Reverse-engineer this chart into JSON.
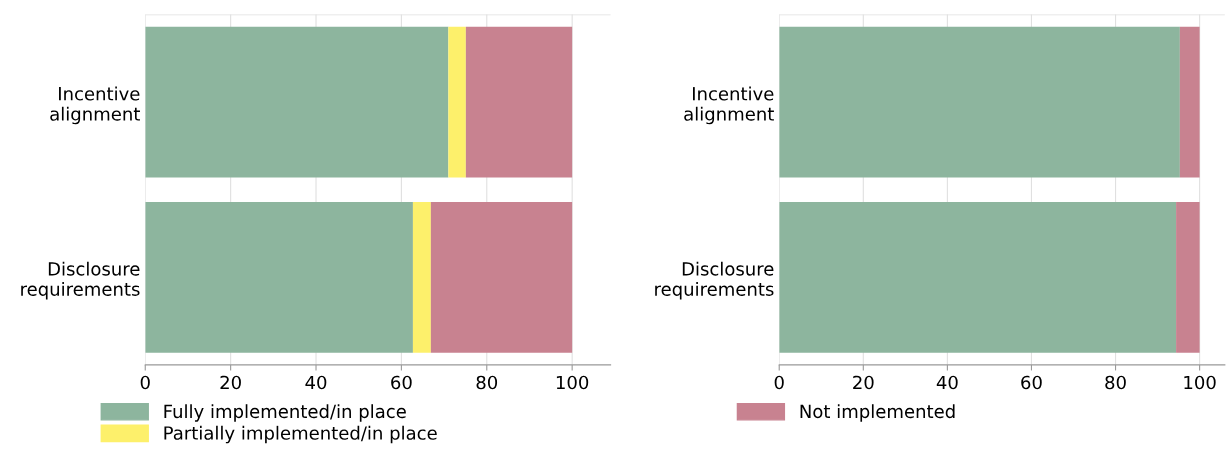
{
  "chart_data": [
    {
      "type": "bar",
      "orientation": "horizontal",
      "stacked": true,
      "categories": [
        "Incentive\nalignment",
        "Disclosure\nrequirements"
      ],
      "xlim": [
        0,
        109
      ],
      "xticks": [
        0,
        20,
        40,
        60,
        80,
        100
      ],
      "grid": "x",
      "legend": "bottom left",
      "series": [
        {
          "name": "Fully implemented/in place",
          "color": "#8db59e",
          "values": [
            71,
            62.7
          ]
        },
        {
          "name": "Partially implemented/in place",
          "color": "#fdf06b",
          "values": [
            4.1,
            4.2
          ]
        },
        {
          "color": "#c88290",
          "values": [
            24.9,
            33.1
          ]
        }
      ]
    },
    {
      "type": "bar",
      "orientation": "horizontal",
      "stacked": true,
      "categories": [
        "Incentive\nalignment",
        "Disclosure\nrequirements"
      ],
      "xlim": [
        0,
        106
      ],
      "xticks": [
        0,
        20,
        40,
        60,
        80,
        100
      ],
      "grid": "x",
      "legend": "bottom left",
      "series": [
        {
          "color": "#8db59e",
          "values": [
            95.3,
            94.4
          ]
        },
        {
          "name": "Not implemented",
          "color": "#c88290",
          "values": [
            4.7,
            5.6
          ]
        }
      ]
    }
  ]
}
